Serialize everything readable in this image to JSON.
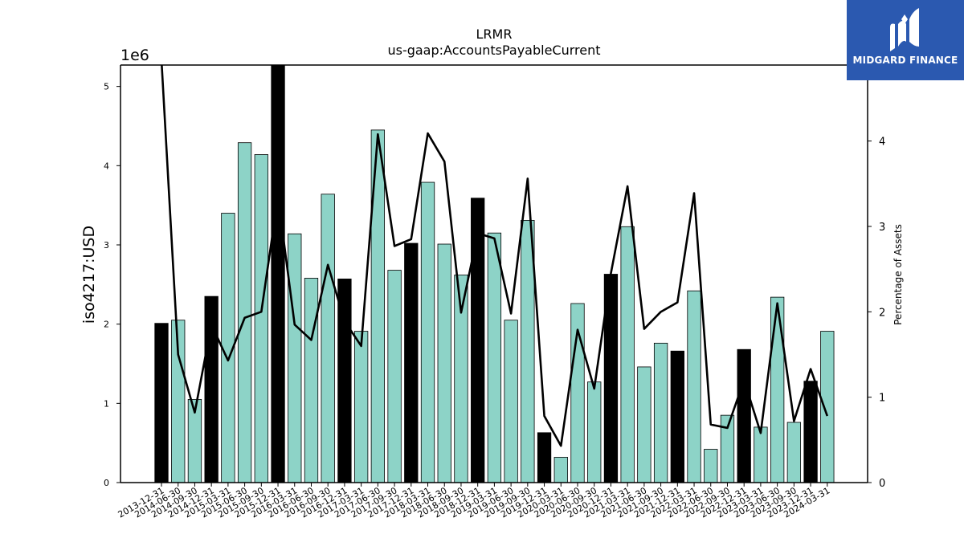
{
  "brand": {
    "name": "MIDGARD FINANCE",
    "logo_icon": "midgard-logo-icon",
    "background_color": "#2b59b0"
  },
  "chart_data": {
    "type": "bar",
    "title": "LRMR",
    "subtitle": "us-gaap:AccountsPayableCurrent",
    "ylabel": "iso4217:USD",
    "y2label": "Percentage of Assets",
    "y_scale_label": "1e6",
    "ylim": [
      0,
      5270000
    ],
    "y2lim": [
      0,
      4.89
    ],
    "yticks": [
      0,
      1,
      2,
      3,
      4,
      5
    ],
    "y2ticks": [
      0,
      1,
      2,
      3,
      4
    ],
    "grid": false,
    "legend": "none",
    "categories": [
      "2013-12-31",
      "2014-06-30",
      "2014-09-30",
      "2014-12-31",
      "2015-03-31",
      "2015-06-30",
      "2015-09-30",
      "2015-12-31",
      "2016-03-31",
      "2016-06-30",
      "2016-09-30",
      "2016-12-31",
      "2017-03-31",
      "2017-06-30",
      "2017-09-30",
      "2017-12-31",
      "2018-03-31",
      "2018-06-30",
      "2018-09-30",
      "2018-12-31",
      "2019-03-31",
      "2019-06-30",
      "2019-09-30",
      "2019-12-31",
      "2020-03-31",
      "2020-06-30",
      "2020-09-30",
      "2020-12-31",
      "2021-03-31",
      "2021-06-30",
      "2021-09-30",
      "2021-12-31",
      "2022-03-31",
      "2022-06-30",
      "2022-09-30",
      "2022-12-31",
      "2023-03-31",
      "2023-06-30",
      "2023-09-30",
      "2023-12-31",
      "2024-03-31"
    ],
    "bar_values": [
      2010000,
      2050000,
      1050000,
      2350000,
      3400000,
      4290000,
      4140000,
      5270000,
      3140000,
      2580000,
      3640000,
      2570000,
      1910000,
      4450000,
      2680000,
      3020000,
      3790000,
      3010000,
      2620000,
      3590000,
      3150000,
      2050000,
      3310000,
      630000,
      320000,
      2260000,
      1270000,
      2630000,
      3230000,
      1460000,
      1760000,
      1660000,
      2420000,
      420000,
      850000,
      1680000,
      700000,
      2340000,
      760000,
      1280000,
      1910000
    ],
    "annual_flags": [
      true,
      false,
      false,
      true,
      false,
      false,
      false,
      true,
      false,
      false,
      false,
      true,
      false,
      false,
      false,
      true,
      false,
      false,
      false,
      true,
      false,
      false,
      false,
      true,
      false,
      false,
      false,
      true,
      false,
      false,
      false,
      true,
      false,
      false,
      false,
      true,
      false,
      false,
      false,
      true,
      false
    ],
    "line_values": [
      4.95,
      1.5,
      0.82,
      1.85,
      1.43,
      1.93,
      2.0,
      3.35,
      1.85,
      1.67,
      2.55,
      1.89,
      1.6,
      4.08,
      2.77,
      2.85,
      4.09,
      3.76,
      1.99,
      2.92,
      2.86,
      1.98,
      3.56,
      0.78,
      0.43,
      1.79,
      1.1,
      2.45,
      3.47,
      1.8,
      2.0,
      2.11,
      3.39,
      0.68,
      0.64,
      1.2,
      0.58,
      2.1,
      0.72,
      1.33,
      0.78
    ],
    "colors": {
      "annual_bar": "#000000",
      "quarter_bar": "#8dd3c7",
      "bar_edge": "#000000",
      "line": "#000000"
    }
  }
}
